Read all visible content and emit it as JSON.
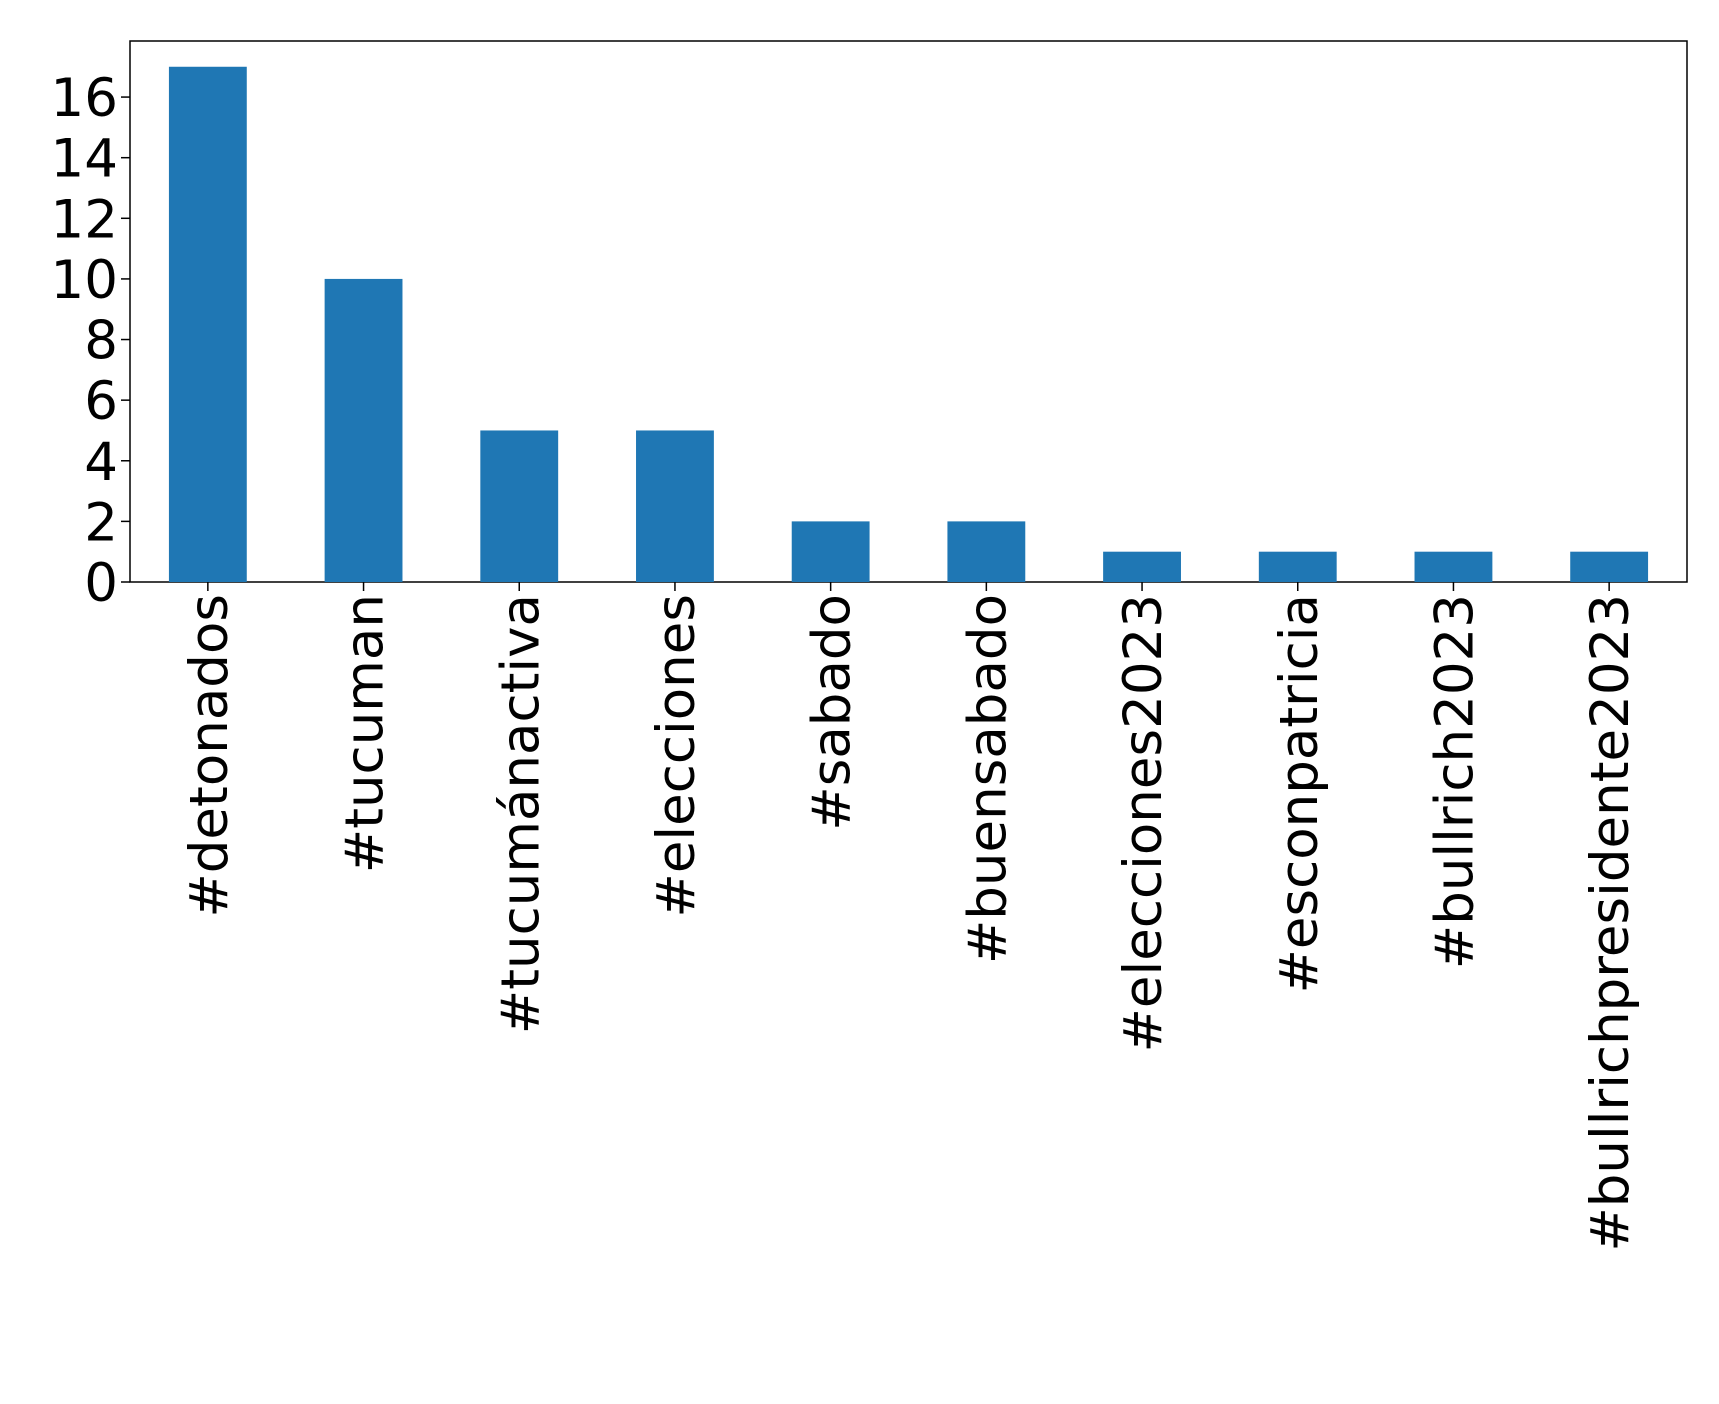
{
  "chart_data": {
    "type": "bar",
    "categories": [
      "#detonados",
      "#tucuman",
      "#tucumánactiva",
      "#elecciones",
      "#sabado",
      "#buensabado",
      "#elecciones2023",
      "#esconpatricia",
      "#bullrich2023",
      "#bullrichpresidente2023"
    ],
    "values": [
      17,
      10,
      5,
      5,
      2,
      2,
      1,
      1,
      1,
      1
    ],
    "color": "#1f77b4",
    "ylim": [
      0,
      17.85
    ],
    "yticks": [
      0,
      2,
      4,
      6,
      8,
      10,
      12,
      14,
      16
    ],
    "grid": false
  }
}
